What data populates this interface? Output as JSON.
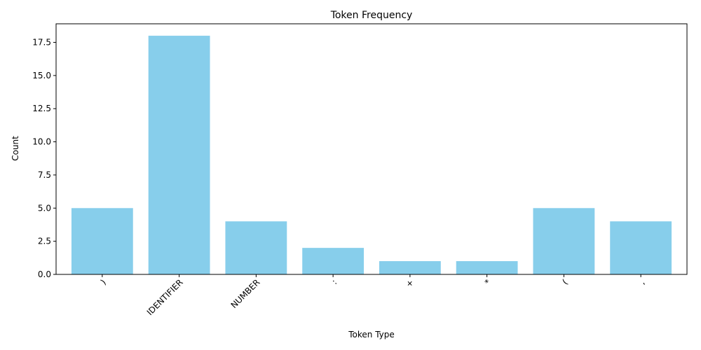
{
  "chart_data": {
    "type": "bar",
    "title": "Token Frequency",
    "xlabel": "Token Type",
    "ylabel": "Count",
    "categories": [
      ")",
      "IDENTIFIER",
      "NUMBER",
      ":",
      "+",
      "*",
      "(",
      ","
    ],
    "values": [
      5,
      18,
      4,
      2,
      1,
      1,
      5,
      4
    ],
    "ylim": [
      0,
      18.9
    ],
    "yticks": [
      "0.0",
      "2.5",
      "5.0",
      "7.5",
      "10.0",
      "12.5",
      "15.0",
      "17.5"
    ],
    "bar_color": "#87ceeb",
    "grid": false,
    "xtick_rotation": 45
  }
}
